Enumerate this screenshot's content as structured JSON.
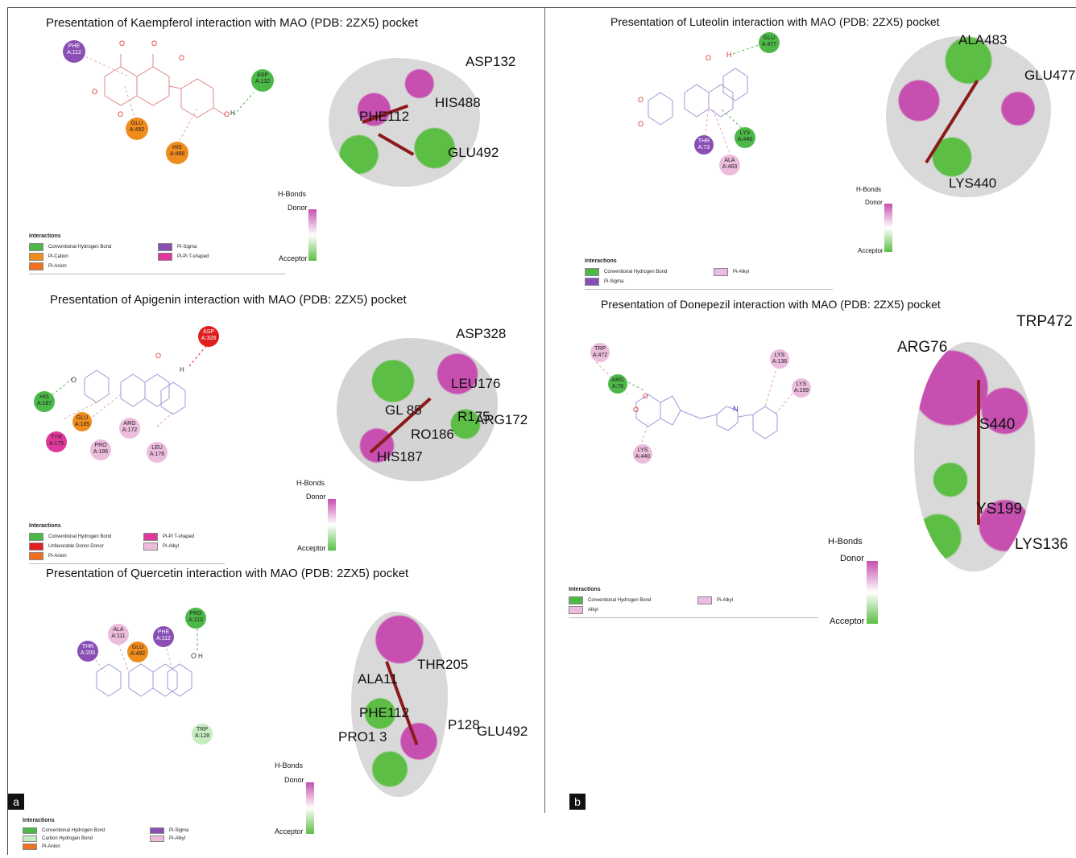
{
  "figure": {
    "panel_a_label": "a",
    "panel_b_label": "b",
    "hbond_legend": {
      "title": "H-Bonds",
      "donor": "Donor",
      "acceptor": "Acceptor"
    },
    "interactions_heading": "Interactions",
    "colors": {
      "conventional_hbond": "#4cb848",
      "carbon_hbond": "#c7ecc2",
      "pi_cation": "#f08c1c",
      "pi_anion": "#f07020",
      "pi_sigma": "#8a4fb5",
      "pi_pi_tshaped": "#e0379a",
      "pi_alkyl": "#ecbcdc",
      "unfavorable": "#e02020",
      "ligand": "#8b1a1a"
    },
    "panels": [
      {
        "id": "kaempferol",
        "title": "Presentation of Kaempferol interaction with MAO (PDB: 2ZX5) pocket",
        "residues_2d": [
          "PHE\nA:112",
          "ASP\nA:132",
          "GLU\nA:492",
          "HIS\nA:488"
        ],
        "residues_3d": [
          "ASP132",
          "HIS488",
          "PHE112",
          "GLU492"
        ],
        "legend": [
          "Conventional Hydrogen Bond",
          "Pi-Sigma",
          "Pi-Cation",
          "Pi-Pi T-shaped",
          "Pi-Anion"
        ]
      },
      {
        "id": "apigenin",
        "title": "Presentation of  Apigenin interaction with MAO (PDB: 2ZX5) pocket",
        "residues_2d": [
          "ASP\nA:328",
          "HIS\nA:187",
          "GLU\nA:185",
          "TYR\nA:175",
          "PRO\nA:186",
          "ARG\nA:172",
          "LEU\nA:176"
        ],
        "residues_3d": [
          "ASP328",
          "LEU176",
          "ARG172",
          "R175",
          "RO186",
          "HIS187",
          "GL 85"
        ],
        "legend": [
          "Conventional Hydrogen Bond",
          "Pi-Pi T-shaped",
          "Unfavorable Donor-Donor",
          "Pi-Alkyl",
          "Pi-Anion"
        ]
      },
      {
        "id": "quercetin",
        "title": "Presentation of Quercetin  interaction with MAO (PDB: 2ZX5) pocket",
        "residues_2d": [
          "PRO\nA:113",
          "ALA\nA:111",
          "PHE\nA:112",
          "THR\nA:205",
          "GLU\nA:492",
          "TRP\nA:128"
        ],
        "residues_3d": [
          "THR205",
          "ALA11",
          "PHE112",
          "P128",
          "GLU492",
          "PRO1 3"
        ],
        "legend": [
          "Conventional Hydrogen Bond",
          "Pi-Sigma",
          "Carbon Hydrogen Bond",
          "Pi-Alkyl",
          "Pi-Anion"
        ]
      },
      {
        "id": "luteolin",
        "title": "Presentation of Luteolin interaction with MAO (PDB: 2ZX5) pocket",
        "residues_2d": [
          "GLU\nA:477",
          "LYS\nA:440",
          "THR\nA:73",
          "ALA\nA:483"
        ],
        "residues_3d": [
          "ALA483",
          "GLU477",
          "LYS440"
        ],
        "legend": [
          "Conventional Hydrogen Bond",
          "Pi-Alkyl",
          "Pi-Sigma"
        ]
      },
      {
        "id": "donepezil",
        "title": "Presentation of Donepezil  interaction with MAO (PDB: 2ZX5) pocket",
        "residues_2d": [
          "TRP\nA:472",
          "ARG\nA:76",
          "LYS\nA:136",
          "LYS\nA:199",
          "LYS\nA:440"
        ],
        "residues_3d": [
          "TRP472",
          "ARG76",
          "S440",
          "YS199",
          "LYS136"
        ],
        "legend": [
          "Conventional Hydrogen Bond",
          "Pi-Alkyl",
          "Alkyl"
        ]
      }
    ]
  }
}
